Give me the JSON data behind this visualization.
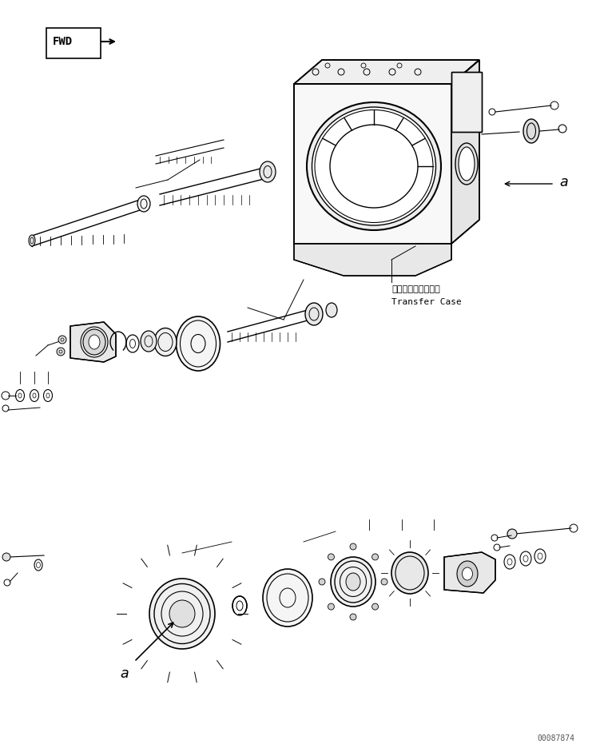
{
  "bg_color": "#ffffff",
  "line_color": "#000000",
  "figsize": [
    7.41,
    9.36
  ],
  "dpi": 100,
  "label_transfer_case_jp": "トランスファケース",
  "label_transfer_case_en": "Transfer Case",
  "label_fwd": "FWD",
  "label_a_right": "a",
  "label_a_left": "a",
  "watermark": "00087874"
}
